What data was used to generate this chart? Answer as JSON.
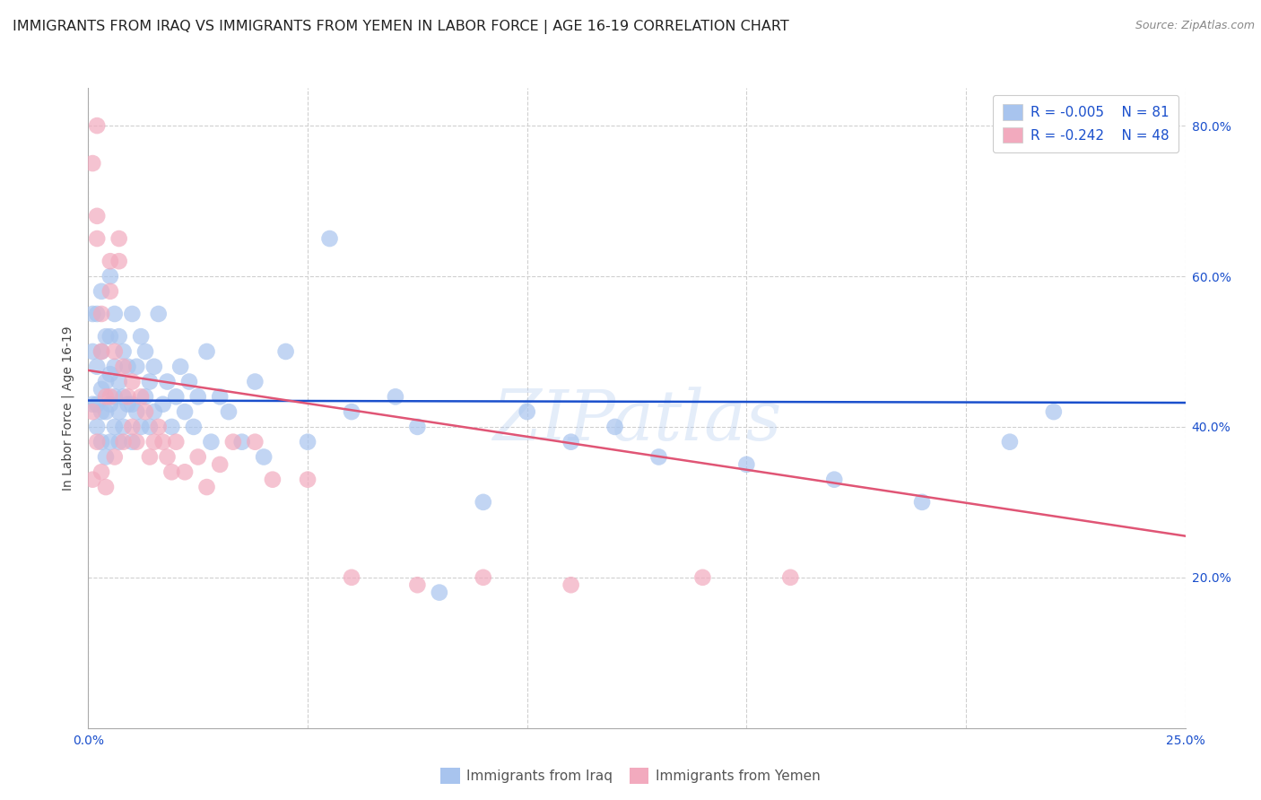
{
  "title": "IMMIGRANTS FROM IRAQ VS IMMIGRANTS FROM YEMEN IN LABOR FORCE | AGE 16-19 CORRELATION CHART",
  "source_text": "Source: ZipAtlas.com",
  "ylabel": "In Labor Force | Age 16-19",
  "x_min": 0.0,
  "x_max": 0.25,
  "y_min": 0.0,
  "y_max": 0.85,
  "y_ticks": [
    0.2,
    0.4,
    0.6,
    0.8
  ],
  "y_tick_labels": [
    "20.0%",
    "40.0%",
    "60.0%",
    "80.0%"
  ],
  "x_ticks": [
    0.0,
    0.05,
    0.1,
    0.15,
    0.2,
    0.25
  ],
  "x_tick_labels": [
    "0.0%",
    "",
    "",
    "",
    "",
    "25.0%"
  ],
  "iraq_line_color": "#1a4fcc",
  "yemen_line_color": "#e05575",
  "iraq_scatter_color": "#a8c4ee",
  "yemen_scatter_color": "#f2aabe",
  "iraq_R": -0.005,
  "iraq_N": 81,
  "yemen_R": -0.242,
  "yemen_N": 48,
  "watermark": "ZIPatlas",
  "background_color": "#ffffff",
  "grid_color": "#d0d0d0",
  "title_fontsize": 11.5,
  "axis_label_fontsize": 10,
  "tick_fontsize": 10,
  "source_fontsize": 9,
  "iraq_x": [
    0.001,
    0.001,
    0.001,
    0.002,
    0.002,
    0.002,
    0.002,
    0.003,
    0.003,
    0.003,
    0.003,
    0.003,
    0.004,
    0.004,
    0.004,
    0.004,
    0.005,
    0.005,
    0.005,
    0.005,
    0.005,
    0.006,
    0.006,
    0.006,
    0.006,
    0.007,
    0.007,
    0.007,
    0.007,
    0.008,
    0.008,
    0.008,
    0.009,
    0.009,
    0.01,
    0.01,
    0.01,
    0.011,
    0.011,
    0.012,
    0.012,
    0.013,
    0.013,
    0.014,
    0.014,
    0.015,
    0.015,
    0.016,
    0.017,
    0.018,
    0.019,
    0.02,
    0.021,
    0.022,
    0.023,
    0.024,
    0.025,
    0.027,
    0.028,
    0.03,
    0.032,
    0.035,
    0.038,
    0.04,
    0.045,
    0.05,
    0.055,
    0.06,
    0.07,
    0.075,
    0.08,
    0.09,
    0.1,
    0.11,
    0.12,
    0.13,
    0.15,
    0.17,
    0.19,
    0.21,
    0.22
  ],
  "iraq_y": [
    0.43,
    0.5,
    0.55,
    0.4,
    0.43,
    0.48,
    0.55,
    0.38,
    0.42,
    0.45,
    0.5,
    0.58,
    0.36,
    0.42,
    0.46,
    0.52,
    0.38,
    0.43,
    0.47,
    0.52,
    0.6,
    0.4,
    0.44,
    0.48,
    0.55,
    0.38,
    0.42,
    0.46,
    0.52,
    0.4,
    0.44,
    0.5,
    0.43,
    0.48,
    0.38,
    0.43,
    0.55,
    0.42,
    0.48,
    0.4,
    0.52,
    0.44,
    0.5,
    0.4,
    0.46,
    0.42,
    0.48,
    0.55,
    0.43,
    0.46,
    0.4,
    0.44,
    0.48,
    0.42,
    0.46,
    0.4,
    0.44,
    0.5,
    0.38,
    0.44,
    0.42,
    0.38,
    0.46,
    0.36,
    0.5,
    0.38,
    0.65,
    0.42,
    0.44,
    0.4,
    0.18,
    0.3,
    0.42,
    0.38,
    0.4,
    0.36,
    0.35,
    0.33,
    0.3,
    0.38,
    0.42
  ],
  "yemen_x": [
    0.001,
    0.001,
    0.001,
    0.002,
    0.002,
    0.002,
    0.003,
    0.003,
    0.003,
    0.004,
    0.004,
    0.005,
    0.005,
    0.005,
    0.006,
    0.006,
    0.007,
    0.007,
    0.008,
    0.008,
    0.009,
    0.01,
    0.01,
    0.011,
    0.012,
    0.013,
    0.014,
    0.015,
    0.016,
    0.017,
    0.018,
    0.019,
    0.02,
    0.022,
    0.025,
    0.027,
    0.03,
    0.033,
    0.038,
    0.042,
    0.05,
    0.06,
    0.075,
    0.09,
    0.11,
    0.14,
    0.16,
    0.002
  ],
  "yemen_y": [
    0.75,
    0.42,
    0.33,
    0.65,
    0.68,
    0.38,
    0.5,
    0.55,
    0.34,
    0.44,
    0.32,
    0.58,
    0.62,
    0.44,
    0.5,
    0.36,
    0.62,
    0.65,
    0.48,
    0.38,
    0.44,
    0.4,
    0.46,
    0.38,
    0.44,
    0.42,
    0.36,
    0.38,
    0.4,
    0.38,
    0.36,
    0.34,
    0.38,
    0.34,
    0.36,
    0.32,
    0.35,
    0.38,
    0.38,
    0.33,
    0.33,
    0.2,
    0.19,
    0.2,
    0.19,
    0.2,
    0.2,
    0.8
  ],
  "iraq_line_y0": 0.435,
  "iraq_line_y1": 0.432,
  "yemen_line_y0": 0.475,
  "yemen_line_y1": 0.255
}
